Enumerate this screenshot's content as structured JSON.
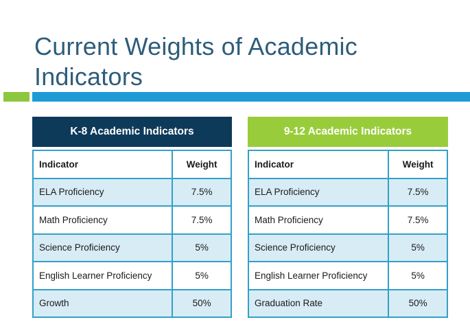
{
  "slide": {
    "title": "Current Weights of Academic Indicators"
  },
  "tables": [
    {
      "header": "K-8 Academic Indicators",
      "columns": [
        "Indicator",
        "Weight"
      ],
      "rows": [
        {
          "indicator": "ELA Proficiency",
          "weight": "7.5%"
        },
        {
          "indicator": "Math Proficiency",
          "weight": "7.5%"
        },
        {
          "indicator": "Science Proficiency",
          "weight": "5%"
        },
        {
          "indicator": "English Learner Proficiency",
          "weight": "5%"
        },
        {
          "indicator": "Growth",
          "weight": "50%"
        }
      ]
    },
    {
      "header": "9-12 Academic Indicators",
      "columns": [
        "Indicator",
        "Weight"
      ],
      "rows": [
        {
          "indicator": "ELA Proficiency",
          "weight": "7.5%"
        },
        {
          "indicator": "Math Proficiency",
          "weight": "7.5%"
        },
        {
          "indicator": "Science Proficiency",
          "weight": "5%"
        },
        {
          "indicator": "English Learner Proficiency",
          "weight": "5%"
        },
        {
          "indicator": "Graduation Rate",
          "weight": "50%"
        }
      ]
    }
  ],
  "colors": {
    "title": "#2e5d7a",
    "accent_green": "#8dc63f",
    "accent_blue": "#1e9bd7",
    "k8_header": "#0e3a5a",
    "hs_header": "#99cc3a",
    "table_border": "#32a0c8",
    "row_shade": "#d8ecf6"
  }
}
